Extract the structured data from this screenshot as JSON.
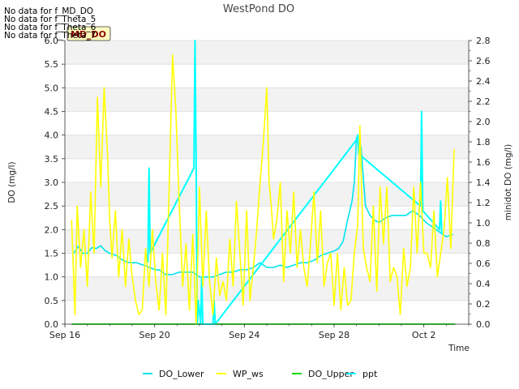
{
  "no_data_messages": [
    "No data for f_MD_DO",
    "No data for f_Theta_5",
    "No data for f_Theta_6",
    "No data for f_Theta_7"
  ],
  "tooltip_label": "MD_DO",
  "colors": {
    "DO_Lower": "#00e5ee",
    "WP_ws": "#ffff00",
    "DO_Upper": "#00dd00",
    "ppt": "#00ffff",
    "band": "#f2f2f2",
    "tooltip_bg": "#ffffc0",
    "tooltip_text": "#8b0000"
  },
  "chart_data": {
    "type": "line",
    "title": "WestPond DO",
    "xlabel": "Time",
    "ylabel": "DO (mg/l)",
    "y2label": "minidot DO (mg/l)",
    "xlim": [
      16,
      34
    ],
    "ylim": [
      0,
      6
    ],
    "y2lim": [
      0,
      2.8
    ],
    "x_ticks": [
      16,
      20,
      24,
      28,
      32
    ],
    "x_tick_labels": [
      "Sep 16",
      "Sep 20",
      "Sep 24",
      "Sep 28",
      "Oct 2"
    ],
    "y_ticks": [
      0,
      0.5,
      1,
      1.5,
      2,
      2.5,
      3,
      3.5,
      4,
      4.5,
      5,
      5.5,
      6
    ],
    "y_tick_labels": [
      "0.0",
      "0.5",
      "1.0",
      "1.5",
      "2.0",
      "2.5",
      "3.0",
      "3.5",
      "4.0",
      "4.5",
      "5.0",
      "5.5",
      "6.0"
    ],
    "y2_ticks": [
      0,
      0.2,
      0.4,
      0.6,
      0.8,
      1.0,
      1.2,
      1.4,
      1.6,
      1.8,
      2.0,
      2.2,
      2.4,
      2.6,
      2.8
    ],
    "y2_tick_labels": [
      "0.0",
      "0.2",
      "0.4",
      "0.6",
      "0.8",
      "1.0",
      "1.2",
      "1.4",
      "1.6",
      "1.8",
      "2.0",
      "2.2",
      "2.4",
      "2.6",
      "2.8"
    ],
    "legend": [
      "DO_Lower",
      "WP_ws",
      "DO_Upper",
      "ppt"
    ],
    "legend_position": "bottom-center",
    "series": [
      {
        "name": "DO_Lower",
        "axis": "left",
        "x": [
          16.4,
          16.6,
          16.8,
          17.0,
          17.2,
          17.4,
          17.6,
          17.8,
          18.0,
          18.3,
          18.6,
          18.9,
          19.2,
          19.5,
          19.8,
          20.0,
          20.2,
          20.5,
          20.8,
          21.1,
          21.4,
          21.7,
          22.0,
          22.3,
          22.6,
          22.9,
          23.2,
          23.5,
          23.8,
          24.1,
          24.4,
          24.7,
          25.0,
          25.3,
          25.6,
          25.9,
          26.2,
          26.5,
          26.8,
          27.1,
          27.4,
          27.7,
          28.0,
          28.2,
          28.4,
          28.6,
          28.8,
          28.9,
          29.0,
          29.2,
          29.4,
          29.6,
          29.8,
          30.0,
          30.3,
          30.6,
          30.9,
          31.2,
          31.5,
          31.8,
          32.1,
          32.4,
          32.7,
          33.0,
          33.3
        ],
        "values": [
          1.5,
          1.65,
          1.5,
          1.5,
          1.62,
          1.6,
          1.66,
          1.55,
          1.5,
          1.45,
          1.35,
          1.3,
          1.3,
          1.25,
          1.2,
          1.15,
          1.15,
          1.05,
          1.05,
          1.1,
          1.1,
          1.1,
          1.0,
          1.0,
          1.0,
          1.05,
          1.1,
          1.1,
          1.15,
          1.15,
          1.2,
          1.3,
          1.2,
          1.2,
          1.25,
          1.2,
          1.25,
          1.3,
          1.3,
          1.35,
          1.45,
          1.5,
          1.55,
          1.6,
          1.75,
          2.2,
          2.6,
          3.0,
          3.95,
          3.75,
          2.5,
          2.3,
          2.2,
          2.15,
          2.25,
          2.3,
          2.3,
          2.3,
          2.4,
          2.3,
          2.15,
          2.05,
          1.95,
          1.85,
          1.9
        ]
      },
      {
        "name": "WP_ws",
        "axis": "left",
        "x": [
          16.3,
          16.45,
          16.55,
          16.7,
          16.85,
          17.0,
          17.15,
          17.3,
          17.45,
          17.6,
          17.75,
          17.9,
          18.0,
          18.1,
          18.25,
          18.4,
          18.55,
          18.7,
          18.85,
          19.0,
          19.15,
          19.3,
          19.45,
          19.6,
          19.75,
          19.9,
          20.05,
          20.2,
          20.35,
          20.5,
          20.65,
          20.8,
          20.95,
          21.1,
          21.25,
          21.4,
          21.55,
          21.7,
          21.85,
          22.0,
          22.15,
          22.3,
          22.45,
          22.6,
          22.75,
          22.9,
          23.05,
          23.2,
          23.35,
          23.5,
          23.65,
          23.8,
          23.95,
          24.1,
          24.25,
          24.4,
          24.55,
          24.7,
          24.85,
          25.0,
          25.1,
          25.2,
          25.3,
          25.45,
          25.6,
          25.75,
          25.9,
          26.05,
          26.2,
          26.35,
          26.5,
          26.65,
          26.8,
          26.95,
          27.1,
          27.25,
          27.4,
          27.55,
          27.7,
          27.85,
          28.0,
          28.15,
          28.3,
          28.45,
          28.6,
          28.75,
          28.9,
          29.05,
          29.15,
          29.3,
          29.45,
          29.6,
          29.75,
          29.9,
          30.05,
          30.2,
          30.35,
          30.5,
          30.65,
          30.8,
          30.95,
          31.1,
          31.25,
          31.4,
          31.55,
          31.7,
          31.85,
          32.0,
          32.15,
          32.3,
          32.45,
          32.6,
          32.75,
          32.9,
          33.05,
          33.2,
          33.35
        ],
        "values": [
          2.2,
          0.2,
          2.5,
          1.2,
          2.0,
          0.8,
          2.8,
          1.5,
          4.8,
          2.9,
          5.0,
          3.6,
          2.2,
          1.4,
          2.4,
          1.0,
          2.0,
          0.8,
          1.8,
          1.0,
          0.5,
          0.2,
          0.3,
          1.6,
          0.8,
          2.0,
          0.9,
          0.3,
          1.5,
          0.2,
          2.9,
          5.7,
          4.5,
          2.5,
          0.8,
          1.7,
          0.3,
          1.9,
          0.0,
          2.9,
          0.8,
          2.4,
          0.9,
          0.2,
          1.4,
          0.6,
          0.9,
          0.5,
          1.8,
          0.8,
          2.6,
          1.5,
          0.4,
          2.4,
          0.5,
          1.2,
          2.0,
          3.0,
          3.9,
          5.0,
          3.0,
          2.5,
          1.8,
          2.2,
          3.0,
          0.9,
          2.4,
          1.5,
          2.8,
          1.2,
          2.0,
          1.2,
          0.8,
          1.7,
          2.8,
          1.3,
          2.4,
          0.8,
          1.3,
          1.5,
          0.4,
          1.5,
          0.3,
          1.2,
          0.4,
          0.5,
          1.5,
          2.1,
          4.2,
          1.6,
          1.2,
          0.9,
          2.5,
          0.7,
          2.9,
          1.7,
          2.9,
          0.9,
          1.2,
          1.0,
          0.2,
          1.6,
          0.8,
          1.2,
          2.9,
          1.5,
          3.0,
          1.5,
          1.5,
          1.2,
          2.4,
          1.0,
          1.5,
          2.0,
          3.1,
          1.6,
          3.7
        ]
      },
      {
        "name": "DO_Upper",
        "axis": "left",
        "x": [
          16.3,
          33.4
        ],
        "values": [
          0.0,
          0.0
        ]
      },
      {
        "name": "ppt",
        "axis": "left",
        "x": [
          19.7,
          19.75,
          19.8,
          21.75,
          21.8,
          21.85,
          21.9,
          21.95,
          22.05,
          22.1,
          22.15,
          22.6,
          22.65,
          22.7,
          29.0,
          29.05,
          29.1,
          31.85,
          31.9,
          31.95,
          32.7,
          32.75,
          32.8
        ],
        "values": [
          1.3,
          3.3,
          1.5,
          3.3,
          6.0,
          3.3,
          0.0,
          0.5,
          0.0,
          1.0,
          0.0,
          0.0,
          0.5,
          0.0,
          3.9,
          4.0,
          3.6,
          2.5,
          4.5,
          2.4,
          2.0,
          2.6,
          1.9
        ]
      }
    ]
  }
}
